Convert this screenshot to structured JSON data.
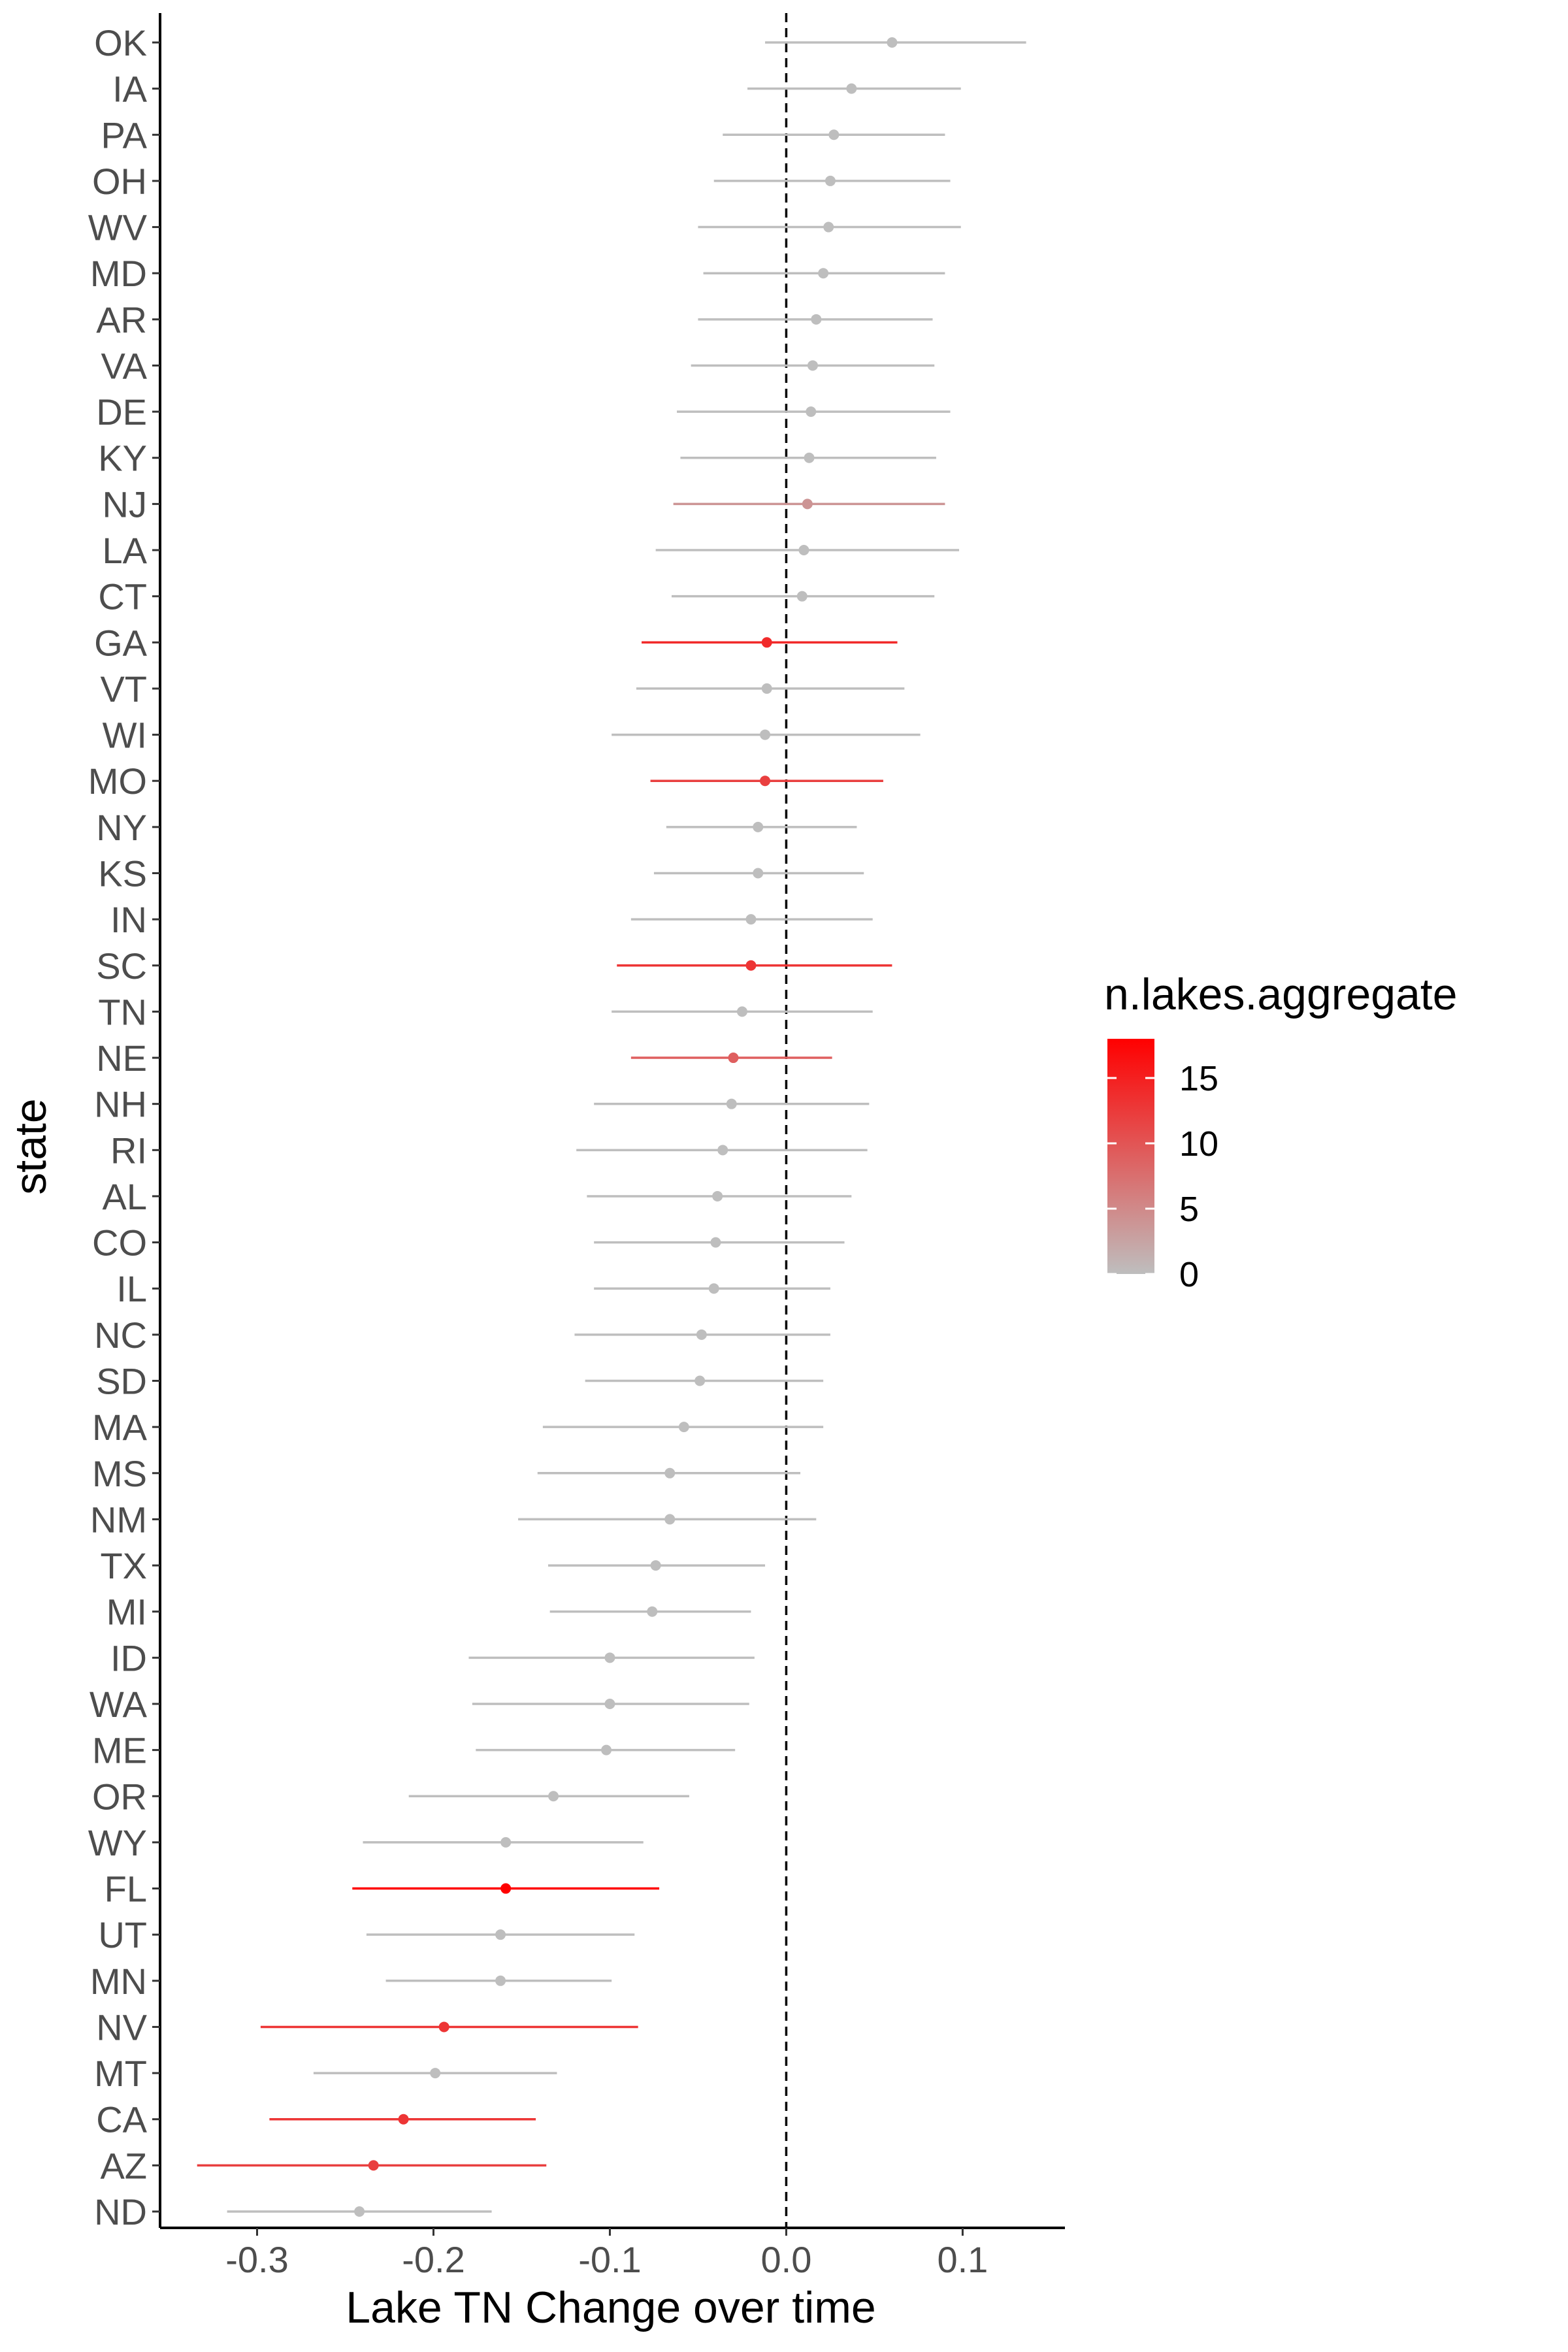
{
  "chart_data": {
    "type": "scatter",
    "subtype": "point-range (coefficient plot)",
    "xlabel": "Lake TN Change over time",
    "ylabel": "state",
    "xlim": [
      -0.355,
      0.158
    ],
    "x_ticks": [
      -0.3,
      -0.2,
      -0.1,
      0.0,
      0.1
    ],
    "x_tick_labels": [
      "-0.3",
      "-0.2",
      "-0.1",
      "0.0",
      "0.1"
    ],
    "reference_line": {
      "x": 0,
      "style": "dashed"
    },
    "grid": false,
    "color_scale": {
      "variable": "n.lakes.aggregate",
      "low_color": "#bebebe",
      "high_color": "#ff0000",
      "min": 0,
      "max": 18,
      "ticks": [
        0,
        5,
        10,
        15
      ],
      "tick_labels": [
        "0",
        "5",
        "10",
        "15"
      ],
      "legend_position": "right"
    },
    "points": [
      {
        "state": "OK",
        "estimate": 0.06,
        "lower": -0.012,
        "upper": 0.136,
        "n_lakes": 0
      },
      {
        "state": "IA",
        "estimate": 0.037,
        "lower": -0.022,
        "upper": 0.099,
        "n_lakes": 0
      },
      {
        "state": "PA",
        "estimate": 0.027,
        "lower": -0.036,
        "upper": 0.09,
        "n_lakes": 0
      },
      {
        "state": "OH",
        "estimate": 0.025,
        "lower": -0.041,
        "upper": 0.093,
        "n_lakes": 0
      },
      {
        "state": "WV",
        "estimate": 0.024,
        "lower": -0.05,
        "upper": 0.099,
        "n_lakes": 0
      },
      {
        "state": "MD",
        "estimate": 0.021,
        "lower": -0.047,
        "upper": 0.09,
        "n_lakes": 0
      },
      {
        "state": "AR",
        "estimate": 0.017,
        "lower": -0.05,
        "upper": 0.083,
        "n_lakes": 0
      },
      {
        "state": "VA",
        "estimate": 0.015,
        "lower": -0.054,
        "upper": 0.084,
        "n_lakes": 0
      },
      {
        "state": "DE",
        "estimate": 0.014,
        "lower": -0.062,
        "upper": 0.093,
        "n_lakes": 0
      },
      {
        "state": "KY",
        "estimate": 0.013,
        "lower": -0.06,
        "upper": 0.085,
        "n_lakes": 0
      },
      {
        "state": "NJ",
        "estimate": 0.012,
        "lower": -0.064,
        "upper": 0.09,
        "n_lakes": 4
      },
      {
        "state": "LA",
        "estimate": 0.01,
        "lower": -0.074,
        "upper": 0.098,
        "n_lakes": 0
      },
      {
        "state": "CT",
        "estimate": 0.009,
        "lower": -0.065,
        "upper": 0.084,
        "n_lakes": 0
      },
      {
        "state": "GA",
        "estimate": -0.011,
        "lower": -0.082,
        "upper": 0.063,
        "n_lakes": 14
      },
      {
        "state": "VT",
        "estimate": -0.011,
        "lower": -0.085,
        "upper": 0.067,
        "n_lakes": 0
      },
      {
        "state": "WI",
        "estimate": -0.012,
        "lower": -0.099,
        "upper": 0.076,
        "n_lakes": 0
      },
      {
        "state": "MO",
        "estimate": -0.012,
        "lower": -0.077,
        "upper": 0.055,
        "n_lakes": 12
      },
      {
        "state": "NY",
        "estimate": -0.016,
        "lower": -0.068,
        "upper": 0.04,
        "n_lakes": 0
      },
      {
        "state": "KS",
        "estimate": -0.016,
        "lower": -0.075,
        "upper": 0.044,
        "n_lakes": 0
      },
      {
        "state": "IN",
        "estimate": -0.02,
        "lower": -0.088,
        "upper": 0.049,
        "n_lakes": 0
      },
      {
        "state": "SC",
        "estimate": -0.02,
        "lower": -0.096,
        "upper": 0.06,
        "n_lakes": 13
      },
      {
        "state": "TN",
        "estimate": -0.025,
        "lower": -0.099,
        "upper": 0.049,
        "n_lakes": 0
      },
      {
        "state": "NE",
        "estimate": -0.03,
        "lower": -0.088,
        "upper": 0.026,
        "n_lakes": 9
      },
      {
        "state": "NH",
        "estimate": -0.031,
        "lower": -0.109,
        "upper": 0.047,
        "n_lakes": 0
      },
      {
        "state": "RI",
        "estimate": -0.036,
        "lower": -0.119,
        "upper": 0.046,
        "n_lakes": 0
      },
      {
        "state": "AL",
        "estimate": -0.039,
        "lower": -0.113,
        "upper": 0.037,
        "n_lakes": 0
      },
      {
        "state": "CO",
        "estimate": -0.04,
        "lower": -0.109,
        "upper": 0.033,
        "n_lakes": 0
      },
      {
        "state": "IL",
        "estimate": -0.041,
        "lower": -0.109,
        "upper": 0.025,
        "n_lakes": 0
      },
      {
        "state": "NC",
        "estimate": -0.048,
        "lower": -0.12,
        "upper": 0.025,
        "n_lakes": 0
      },
      {
        "state": "SD",
        "estimate": -0.049,
        "lower": -0.114,
        "upper": 0.021,
        "n_lakes": 0
      },
      {
        "state": "MA",
        "estimate": -0.058,
        "lower": -0.138,
        "upper": 0.021,
        "n_lakes": 0
      },
      {
        "state": "MS",
        "estimate": -0.066,
        "lower": -0.141,
        "upper": 0.008,
        "n_lakes": 0
      },
      {
        "state": "NM",
        "estimate": -0.066,
        "lower": -0.152,
        "upper": 0.017,
        "n_lakes": 0
      },
      {
        "state": "TX",
        "estimate": -0.074,
        "lower": -0.135,
        "upper": -0.012,
        "n_lakes": 0
      },
      {
        "state": "MI",
        "estimate": -0.076,
        "lower": -0.134,
        "upper": -0.02,
        "n_lakes": 0
      },
      {
        "state": "ID",
        "estimate": -0.1,
        "lower": -0.18,
        "upper": -0.018,
        "n_lakes": 0
      },
      {
        "state": "WA",
        "estimate": -0.1,
        "lower": -0.178,
        "upper": -0.021,
        "n_lakes": 0
      },
      {
        "state": "ME",
        "estimate": -0.102,
        "lower": -0.176,
        "upper": -0.029,
        "n_lakes": 0
      },
      {
        "state": "OR",
        "estimate": -0.132,
        "lower": -0.214,
        "upper": -0.055,
        "n_lakes": 0
      },
      {
        "state": "WY",
        "estimate": -0.159,
        "lower": -0.24,
        "upper": -0.081,
        "n_lakes": 0
      },
      {
        "state": "FL",
        "estimate": -0.159,
        "lower": -0.246,
        "upper": -0.072,
        "n_lakes": 18
      },
      {
        "state": "UT",
        "estimate": -0.162,
        "lower": -0.238,
        "upper": -0.086,
        "n_lakes": 0
      },
      {
        "state": "MN",
        "estimate": -0.162,
        "lower": -0.227,
        "upper": -0.099,
        "n_lakes": 0
      },
      {
        "state": "NV",
        "estimate": -0.194,
        "lower": -0.298,
        "upper": -0.084,
        "n_lakes": 13
      },
      {
        "state": "MT",
        "estimate": -0.199,
        "lower": -0.268,
        "upper": -0.13,
        "n_lakes": 0
      },
      {
        "state": "CA",
        "estimate": -0.217,
        "lower": -0.293,
        "upper": -0.142,
        "n_lakes": 13
      },
      {
        "state": "AZ",
        "estimate": -0.234,
        "lower": -0.334,
        "upper": -0.136,
        "n_lakes": 12
      },
      {
        "state": "ND",
        "estimate": -0.242,
        "lower": -0.317,
        "upper": -0.167,
        "n_lakes": 0
      }
    ]
  }
}
